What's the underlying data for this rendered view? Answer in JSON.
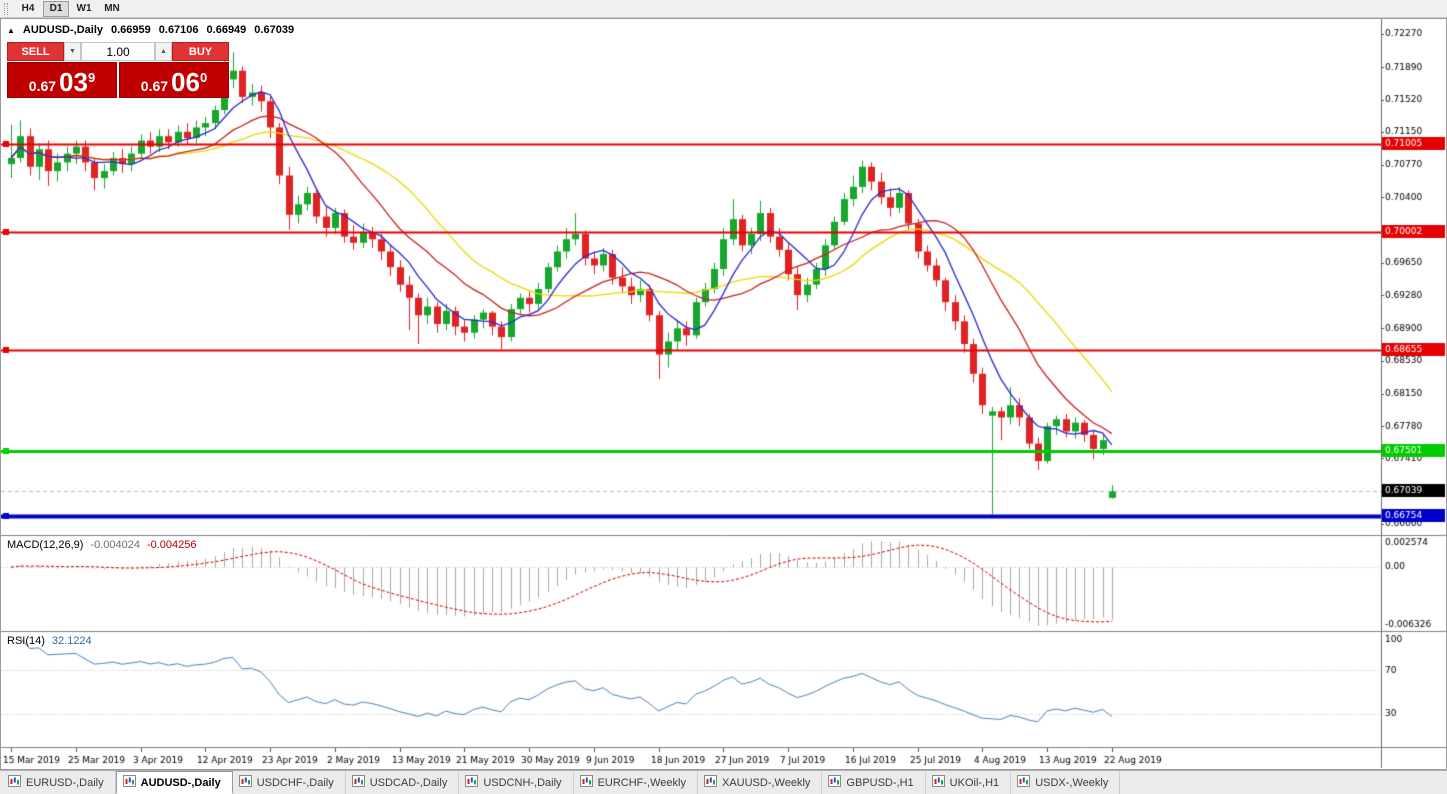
{
  "toolbar": {
    "timeframes": [
      {
        "label": "H4",
        "active": false
      },
      {
        "label": "D1",
        "active": true
      },
      {
        "label": "W1",
        "active": false
      },
      {
        "label": "MN",
        "active": false
      }
    ]
  },
  "chart_header": {
    "collapse_icon": "▲",
    "symbol": "AUDUSD-,Daily",
    "open": "0.66959",
    "high": "0.67106",
    "low": "0.66949",
    "close": "0.67039"
  },
  "trade_panel": {
    "sell_label": "SELL",
    "buy_label": "BUY",
    "volume": "1.00",
    "spinner_down": "▼",
    "spinner_up": "▲",
    "sell_price": {
      "base": "0.67",
      "pips": "03",
      "point": "9"
    },
    "buy_price": {
      "base": "0.67",
      "pips": "06",
      "point": "0"
    }
  },
  "colors": {
    "up": "#17a62e",
    "down": "#e02222",
    "bg": "#ffffff",
    "axis_border": "#6e6e6e"
  },
  "chart_data": {
    "type": "candlestick",
    "symbol": "AUDUSD",
    "timeframe": "Daily",
    "price_axis": {
      "min": 0.6666,
      "max": 0.7227,
      "ticks": [
        "0.72270",
        "0.71890",
        "0.71520",
        "0.71150",
        "0.70770",
        "0.70400",
        "0.70020",
        "0.69650",
        "0.69280",
        "0.68900",
        "0.68530",
        "0.68150",
        "0.67780",
        "0.67410",
        "0.67030",
        "0.66660"
      ]
    },
    "hlines": [
      {
        "price": 0.71005,
        "label": "0.71005",
        "color": "#e60000",
        "width": 2
      },
      {
        "price": 0.70002,
        "label": "0.70002",
        "color": "#e60000",
        "width": 2
      },
      {
        "price": 0.68655,
        "label": "0.68655",
        "color": "#e60000",
        "width": 2
      },
      {
        "price": 0.67501,
        "label": "0.67501",
        "color": "#00cc00",
        "width": 3
      },
      {
        "price": 0.66754,
        "label": "0.66754",
        "color": "#0000cc",
        "width": 4
      }
    ],
    "bid_badge": {
      "price": 0.67039,
      "label": "0.67039",
      "color": "#000000"
    },
    "moving_averages": [
      {
        "period": 22,
        "color": "#ecd800"
      },
      {
        "period": 14,
        "color": "#cc2020"
      },
      {
        "period": 6,
        "color": "#2a2ad0"
      }
    ],
    "x_labels": [
      {
        "i": 0,
        "label": "15 Mar 2019"
      },
      {
        "i": 7,
        "label": "25 Mar 2019"
      },
      {
        "i": 14,
        "label": "3 Apr 2019"
      },
      {
        "i": 21,
        "label": "12 Apr 2019"
      },
      {
        "i": 28,
        "label": "23 Apr 2019"
      },
      {
        "i": 35,
        "label": "2 May 2019"
      },
      {
        "i": 42,
        "label": "13 May 2019"
      },
      {
        "i": 49,
        "label": "21 May 2019"
      },
      {
        "i": 56,
        "label": "30 May 2019"
      },
      {
        "i": 63,
        "label": "9 Jun 2019"
      },
      {
        "i": 70,
        "label": "18 Jun 2019"
      },
      {
        "i": 77,
        "label": "27 Jun 2019"
      },
      {
        "i": 84,
        "label": "7 Jul 2019"
      },
      {
        "i": 91,
        "label": "16 Jul 2019"
      },
      {
        "i": 98,
        "label": "25 Jul 2019"
      },
      {
        "i": 105,
        "label": "4 Aug 2019"
      },
      {
        "i": 112,
        "label": "13 Aug 2019"
      },
      {
        "i": 119,
        "label": "22 Aug 2019"
      }
    ],
    "candles": [
      [
        0.7078,
        0.7123,
        0.7062,
        0.7085
      ],
      [
        0.7085,
        0.7128,
        0.708,
        0.711
      ],
      [
        0.711,
        0.7119,
        0.7065,
        0.7075
      ],
      [
        0.7075,
        0.7102,
        0.706,
        0.7095
      ],
      [
        0.7095,
        0.7105,
        0.7053,
        0.707
      ],
      [
        0.707,
        0.709,
        0.7058,
        0.708
      ],
      [
        0.708,
        0.7098,
        0.707,
        0.709
      ],
      [
        0.709,
        0.7105,
        0.7078,
        0.7098
      ],
      [
        0.7098,
        0.7105,
        0.707,
        0.708
      ],
      [
        0.708,
        0.7085,
        0.7048,
        0.7062
      ],
      [
        0.7062,
        0.7078,
        0.705,
        0.707
      ],
      [
        0.707,
        0.7092,
        0.7065,
        0.7085
      ],
      [
        0.7085,
        0.7095,
        0.7068,
        0.7078
      ],
      [
        0.7078,
        0.7098,
        0.707,
        0.709
      ],
      [
        0.709,
        0.7112,
        0.7085,
        0.7105
      ],
      [
        0.7105,
        0.7115,
        0.709,
        0.7098
      ],
      [
        0.7098,
        0.7118,
        0.7092,
        0.711
      ],
      [
        0.711,
        0.7118,
        0.7095,
        0.7103
      ],
      [
        0.7103,
        0.7122,
        0.7098,
        0.7115
      ],
      [
        0.7115,
        0.7125,
        0.71,
        0.7108
      ],
      [
        0.7108,
        0.7128,
        0.7102,
        0.712
      ],
      [
        0.712,
        0.7132,
        0.711,
        0.7125
      ],
      [
        0.7125,
        0.7145,
        0.7118,
        0.714
      ],
      [
        0.714,
        0.7196,
        0.7135,
        0.7175
      ],
      [
        0.7175,
        0.7206,
        0.7165,
        0.7185
      ],
      [
        0.7185,
        0.719,
        0.7148,
        0.7155
      ],
      [
        0.7155,
        0.717,
        0.7145,
        0.716
      ],
      [
        0.716,
        0.7168,
        0.7138,
        0.715
      ],
      [
        0.715,
        0.7156,
        0.7108,
        0.712
      ],
      [
        0.712,
        0.7125,
        0.7055,
        0.7065
      ],
      [
        0.7065,
        0.7075,
        0.7003,
        0.702
      ],
      [
        0.702,
        0.7042,
        0.701,
        0.7032
      ],
      [
        0.7032,
        0.7052,
        0.7025,
        0.7045
      ],
      [
        0.7045,
        0.705,
        0.701,
        0.7018
      ],
      [
        0.7018,
        0.703,
        0.6995,
        0.7005
      ],
      [
        0.7005,
        0.7028,
        0.6998,
        0.7022
      ],
      [
        0.7022,
        0.7026,
        0.6988,
        0.6995
      ],
      [
        0.6995,
        0.7008,
        0.698,
        0.6988
      ],
      [
        0.6988,
        0.701,
        0.6982,
        0.7
      ],
      [
        0.7,
        0.7006,
        0.6982,
        0.6992
      ],
      [
        0.6992,
        0.6998,
        0.6968,
        0.6978
      ],
      [
        0.6978,
        0.6985,
        0.695,
        0.696
      ],
      [
        0.696,
        0.6968,
        0.6932,
        0.694
      ],
      [
        0.694,
        0.695,
        0.6888,
        0.6925
      ],
      [
        0.6925,
        0.693,
        0.6872,
        0.6905
      ],
      [
        0.6905,
        0.6925,
        0.6895,
        0.6915
      ],
      [
        0.6915,
        0.692,
        0.6885,
        0.6895
      ],
      [
        0.6895,
        0.6918,
        0.6888,
        0.691
      ],
      [
        0.691,
        0.6915,
        0.6882,
        0.6892
      ],
      [
        0.6892,
        0.69,
        0.6875,
        0.6885
      ],
      [
        0.6885,
        0.6905,
        0.6878,
        0.69
      ],
      [
        0.69,
        0.6912,
        0.689,
        0.6908
      ],
      [
        0.6908,
        0.691,
        0.6882,
        0.6892
      ],
      [
        0.6892,
        0.6898,
        0.6866,
        0.688
      ],
      [
        0.688,
        0.6918,
        0.6875,
        0.6912
      ],
      [
        0.6912,
        0.693,
        0.6905,
        0.6925
      ],
      [
        0.6925,
        0.6932,
        0.6908,
        0.6918
      ],
      [
        0.6918,
        0.6942,
        0.6912,
        0.6935
      ],
      [
        0.6935,
        0.6965,
        0.693,
        0.696
      ],
      [
        0.696,
        0.6985,
        0.6955,
        0.6978
      ],
      [
        0.6978,
        0.7005,
        0.697,
        0.6992
      ],
      [
        0.6992,
        0.7022,
        0.6985,
        0.6998
      ],
      [
        0.6998,
        0.7002,
        0.6962,
        0.697
      ],
      [
        0.697,
        0.6978,
        0.6952,
        0.6962
      ],
      [
        0.6962,
        0.6982,
        0.6955,
        0.6975
      ],
      [
        0.6975,
        0.698,
        0.694,
        0.6948
      ],
      [
        0.6948,
        0.696,
        0.693,
        0.6938
      ],
      [
        0.6938,
        0.6948,
        0.6918,
        0.6928
      ],
      [
        0.6928,
        0.6945,
        0.692,
        0.6935
      ],
      [
        0.6935,
        0.694,
        0.6898,
        0.6905
      ],
      [
        0.6905,
        0.691,
        0.6832,
        0.686
      ],
      [
        0.686,
        0.6885,
        0.6845,
        0.6875
      ],
      [
        0.6875,
        0.69,
        0.6865,
        0.689
      ],
      [
        0.689,
        0.6898,
        0.687,
        0.6882
      ],
      [
        0.6882,
        0.6925,
        0.6878,
        0.692
      ],
      [
        0.692,
        0.6942,
        0.6915,
        0.6935
      ],
      [
        0.6935,
        0.6965,
        0.693,
        0.6958
      ],
      [
        0.6958,
        0.7005,
        0.695,
        0.6992
      ],
      [
        0.6992,
        0.7038,
        0.6985,
        0.7015
      ],
      [
        0.7015,
        0.702,
        0.6978,
        0.6985
      ],
      [
        0.6985,
        0.7005,
        0.6975,
        0.6998
      ],
      [
        0.6998,
        0.7036,
        0.699,
        0.7022
      ],
      [
        0.7022,
        0.7028,
        0.6988,
        0.6995
      ],
      [
        0.6995,
        0.7005,
        0.6972,
        0.698
      ],
      [
        0.698,
        0.6988,
        0.6945,
        0.6952
      ],
      [
        0.6952,
        0.696,
        0.6911,
        0.6928
      ],
      [
        0.6928,
        0.6948,
        0.692,
        0.694
      ],
      [
        0.694,
        0.6965,
        0.6935,
        0.6958
      ],
      [
        0.6958,
        0.6992,
        0.695,
        0.6985
      ],
      [
        0.6985,
        0.7018,
        0.698,
        0.7012
      ],
      [
        0.7012,
        0.7045,
        0.7008,
        0.7038
      ],
      [
        0.7038,
        0.7065,
        0.703,
        0.7052
      ],
      [
        0.7052,
        0.7082,
        0.7045,
        0.7075
      ],
      [
        0.7075,
        0.708,
        0.7048,
        0.7058
      ],
      [
        0.7058,
        0.7068,
        0.7032,
        0.704
      ],
      [
        0.704,
        0.705,
        0.7018,
        0.7028
      ],
      [
        0.7028,
        0.7052,
        0.7022,
        0.7045
      ],
      [
        0.7045,
        0.7048,
        0.7002,
        0.701
      ],
      [
        0.701,
        0.7015,
        0.697,
        0.6978
      ],
      [
        0.6978,
        0.6985,
        0.6955,
        0.6962
      ],
      [
        0.6962,
        0.697,
        0.6938,
        0.6945
      ],
      [
        0.6945,
        0.6948,
        0.691,
        0.692
      ],
      [
        0.692,
        0.6928,
        0.6888,
        0.6898
      ],
      [
        0.6898,
        0.6905,
        0.6862,
        0.6872
      ],
      [
        0.6872,
        0.6878,
        0.6828,
        0.6838
      ],
      [
        0.6838,
        0.6845,
        0.6792,
        0.6802
      ],
      [
        0.679,
        0.68,
        0.6677,
        0.6795
      ],
      [
        0.6795,
        0.68,
        0.6762,
        0.6788
      ],
      [
        0.6788,
        0.6823,
        0.678,
        0.6802
      ],
      [
        0.6802,
        0.681,
        0.6778,
        0.6788
      ],
      [
        0.6788,
        0.6792,
        0.6752,
        0.6758
      ],
      [
        0.6758,
        0.6765,
        0.6728,
        0.6738
      ],
      [
        0.6738,
        0.6782,
        0.6735,
        0.6778
      ],
      [
        0.6778,
        0.679,
        0.6768,
        0.6786
      ],
      [
        0.6786,
        0.6792,
        0.6765,
        0.6772
      ],
      [
        0.6772,
        0.6788,
        0.6764,
        0.6782
      ],
      [
        0.6782,
        0.6785,
        0.676,
        0.6768
      ],
      [
        0.6768,
        0.6772,
        0.674,
        0.6752
      ],
      [
        0.6752,
        0.6768,
        0.6745,
        0.6762
      ],
      [
        0.66959,
        0.67106,
        0.66949,
        0.67039
      ]
    ],
    "macd": {
      "label": "MACD(12,26,9)",
      "value_main": "-0.004024",
      "value_signal": "-0.004256",
      "fast": 12,
      "slow": 26,
      "signal": 9,
      "axis_labels": [
        "0.002574",
        "0.00",
        "-0.006326"
      ],
      "hist_color": "#a8a8a8",
      "signal_color": "#cc0000"
    },
    "rsi": {
      "label": "RSI(14)",
      "value": "32.1224",
      "period": 14,
      "levels": [
        100,
        70,
        30
      ],
      "shown_levels": [
        "100",
        "70",
        "30"
      ],
      "line_color": "#4f81bd"
    }
  },
  "tabs": [
    {
      "label": "EURUSD-,Daily",
      "active": false
    },
    {
      "label": "AUDUSD-,Daily",
      "active": true
    },
    {
      "label": "USDCHF-,Daily",
      "active": false
    },
    {
      "label": "USDCAD-,Daily",
      "active": false
    },
    {
      "label": "USDCNH-,Daily",
      "active": false
    },
    {
      "label": "EURCHF-,Weekly",
      "active": false
    },
    {
      "label": "XAUUSD-,Weekly",
      "active": false
    },
    {
      "label": "GBPUSD-,H1",
      "active": false
    },
    {
      "label": "UKOil-,H1",
      "active": false
    },
    {
      "label": "USDX-,Weekly",
      "active": false
    }
  ]
}
